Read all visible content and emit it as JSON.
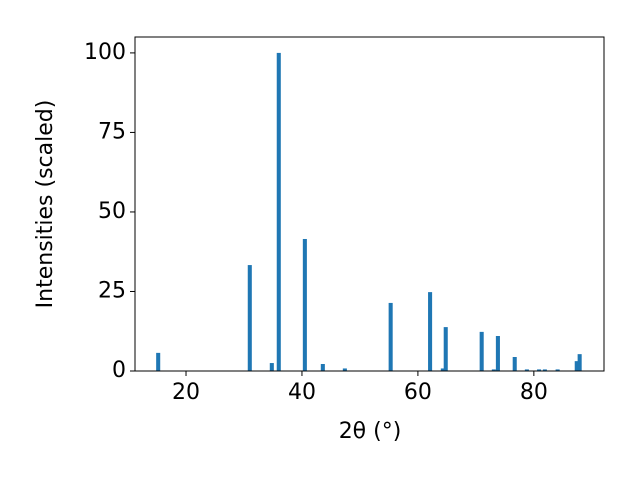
{
  "chart_data": {
    "type": "bar",
    "x": [
      15.2,
      31.0,
      34.8,
      36.0,
      40.5,
      43.6,
      47.4,
      55.3,
      62.1,
      64.3,
      64.8,
      71.0,
      73.1,
      73.8,
      76.7,
      78.8,
      80.9,
      81.9,
      84.1,
      87.4,
      87.9
    ],
    "values": [
      5.7,
      33.3,
      2.5,
      100,
      41.5,
      2.2,
      0.8,
      21.4,
      24.8,
      0.8,
      13.8,
      12.3,
      0.5,
      11.0,
      4.4,
      0.5,
      0.5,
      0.5,
      0.5,
      3.1,
      5.3
    ],
    "color": "#1f77b4",
    "xlabel": "2θ (°)",
    "ylabel": "Intensities (scaled)",
    "xlim": [
      11.2,
      92.1
    ],
    "ylim": [
      0,
      105
    ],
    "xticks": [
      20,
      40,
      60,
      80
    ],
    "yticks": [
      0,
      25,
      50,
      75,
      100
    ]
  }
}
